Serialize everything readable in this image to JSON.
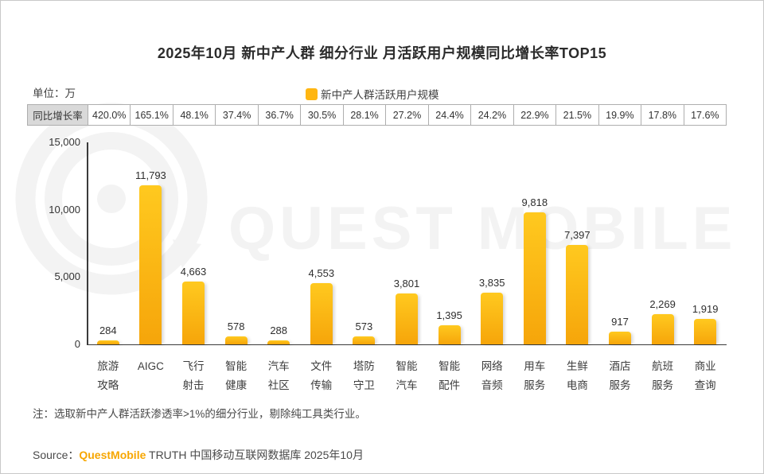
{
  "title": "2025年10月 新中产人群 细分行业 月活跃用户规模同比增长率TOP15",
  "unit_label": "单位：万",
  "legend": {
    "label": "新中产人群活跃用户规模",
    "color": "#ffb612"
  },
  "growth_table": {
    "header": "同比增长率"
  },
  "watermark": {
    "text": "QUEST MOBILE",
    "color": "#f3f3f3"
  },
  "note": "注：选取新中产人群活跃渗透率>1%的细分行业，剔除纯工具类行业。",
  "source": {
    "prefix": "Source：",
    "brand": "QuestMobile",
    "suffix": " TRUTH 中国移动互联网数据库 2025年10月",
    "brand_color": "#f7a600"
  },
  "chart_data": {
    "type": "bar",
    "title": "2025年10月 新中产人群 细分行业 月活跃用户规模同比增长率TOP15",
    "ylabel": "单位：万",
    "categories": [
      "旅游攻略",
      "AIGC",
      "飞行射击",
      "智能健康",
      "汽车社区",
      "文件传输",
      "塔防守卫",
      "智能汽车",
      "智能配件",
      "网络音频",
      "用车服务",
      "生鲜电商",
      "酒店服务",
      "航班服务",
      "商业查询"
    ],
    "category_lines": [
      [
        "旅游",
        "攻略"
      ],
      [
        "AIGC"
      ],
      [
        "飞行",
        "射击"
      ],
      [
        "智能",
        "健康"
      ],
      [
        "汽车",
        "社区"
      ],
      [
        "文件",
        "传输"
      ],
      [
        "塔防",
        "守卫"
      ],
      [
        "智能",
        "汽车"
      ],
      [
        "智能",
        "配件"
      ],
      [
        "网络",
        "音频"
      ],
      [
        "用车",
        "服务"
      ],
      [
        "生鲜",
        "电商"
      ],
      [
        "酒店",
        "服务"
      ],
      [
        "航班",
        "服务"
      ],
      [
        "商业",
        "查询"
      ]
    ],
    "values": [
      284,
      11793,
      4663,
      578,
      288,
      4553,
      573,
      3801,
      1395,
      3835,
      9818,
      7397,
      917,
      2269,
      1919
    ],
    "value_labels": [
      "284",
      "11,793",
      "4,663",
      "578",
      "288",
      "4,553",
      "573",
      "3,801",
      "1,395",
      "3,835",
      "9,818",
      "7,397",
      "917",
      "2,269",
      "1,919"
    ],
    "growth_rates": [
      "420.0%",
      "165.1%",
      "48.1%",
      "37.4%",
      "36.7%",
      "30.5%",
      "28.1%",
      "27.2%",
      "24.4%",
      "24.2%",
      "22.9%",
      "21.5%",
      "19.9%",
      "17.8%",
      "17.6%"
    ],
    "y_ticks": [
      {
        "value": 15000,
        "label": "15,000"
      },
      {
        "value": 10000,
        "label": "10,000"
      },
      {
        "value": 5000,
        "label": "5,000"
      },
      {
        "value": 0,
        "label": "0"
      }
    ],
    "ylim": [
      0,
      15000
    ],
    "grid": false,
    "legend_position": "top",
    "bar_color_top": "#ffc91f",
    "bar_color_bottom": "#f6a50a"
  }
}
